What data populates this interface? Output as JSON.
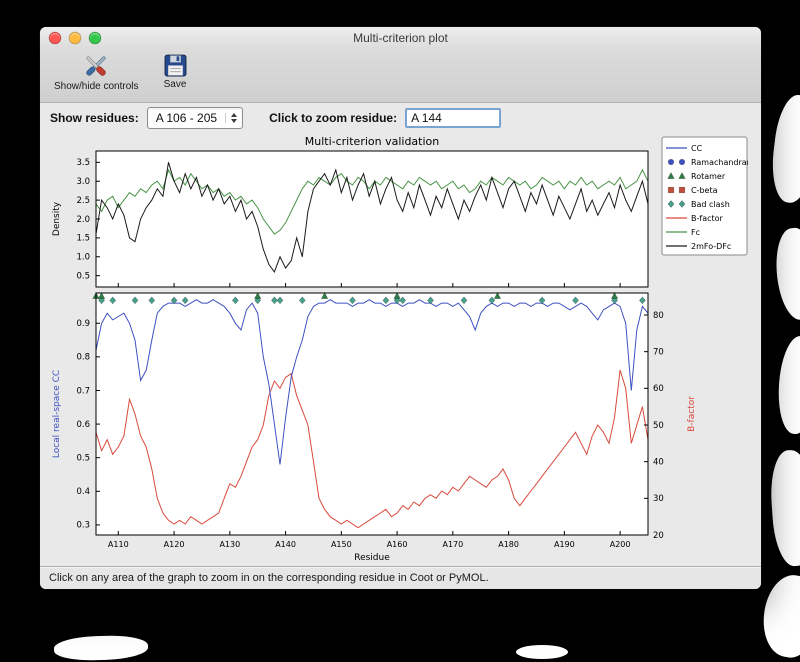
{
  "window": {
    "title": "Multi-criterion plot",
    "toolbar": {
      "show_hide_label": "Show/hide controls",
      "save_label": "Save"
    },
    "controls": {
      "show_residues_label": "Show residues:",
      "residues_range_value": "A 106 - 205",
      "zoom_residue_label": "Click to zoom residue:",
      "zoom_residue_value": "A 144"
    },
    "status": "Click on any area of the graph to zoom in on the corresponding residue in Coot or PyMOL."
  },
  "chart_data": {
    "type": "line",
    "title": "Multi-criterion validation",
    "xlabel": "Residue",
    "x_range": [
      106,
      205
    ],
    "x_ticks": [
      110,
      120,
      130,
      140,
      150,
      160,
      170,
      180,
      190,
      200
    ],
    "x_tick_labels": [
      "A110",
      "A120",
      "A130",
      "A140",
      "A150",
      "A160",
      "A170",
      "A180",
      "A190",
      "A200"
    ],
    "top_plot": {
      "ylabel": "Density",
      "ylim": [
        0.2,
        3.8
      ],
      "yticks": [
        0.5,
        1.0,
        1.5,
        2.0,
        2.5,
        3.0,
        3.5
      ],
      "series": [
        {
          "name": "Fc",
          "color": "#4a9447",
          "values": [
            2.4,
            2.2,
            2.5,
            2.6,
            2.3,
            2.5,
            2.7,
            2.6,
            2.8,
            2.7,
            2.9,
            3.0,
            2.8,
            3.3,
            3.0,
            3.1,
            2.9,
            3.2,
            3.0,
            2.8,
            2.9,
            2.7,
            2.8,
            2.6,
            2.7,
            2.5,
            2.6,
            2.4,
            2.5,
            2.3,
            2.0,
            1.8,
            1.6,
            1.7,
            1.9,
            2.2,
            2.5,
            2.8,
            3.0,
            2.9,
            3.1,
            3.0,
            2.9,
            3.1,
            3.2,
            3.0,
            2.9,
            3.1,
            3.0,
            2.8,
            3.0,
            2.9,
            3.1,
            3.0,
            2.9,
            2.8,
            3.0,
            2.9,
            3.1,
            3.0,
            2.9,
            3.0,
            2.8,
            2.9,
            3.0,
            2.8,
            2.9,
            2.7,
            2.8,
            3.0,
            2.9,
            3.1,
            3.0,
            2.9,
            3.1,
            3.0,
            2.9,
            3.0,
            2.8,
            2.9,
            3.1,
            3.0,
            2.9,
            3.0,
            2.8,
            3.0,
            2.9,
            3.1,
            2.9,
            3.0,
            2.8,
            2.9,
            3.0,
            2.9,
            3.1,
            2.8,
            2.9,
            3.0,
            3.3,
            3.0
          ]
        },
        {
          "name": "2mFo-DFc",
          "color": "#1a1a1a",
          "values": [
            1.6,
            2.5,
            2.3,
            2.0,
            2.4,
            2.1,
            1.5,
            1.4,
            2.0,
            2.3,
            2.5,
            2.8,
            2.6,
            3.5,
            3.0,
            2.7,
            3.2,
            2.8,
            3.1,
            2.6,
            2.9,
            2.5,
            2.8,
            2.4,
            2.6,
            2.2,
            2.5,
            2.0,
            2.2,
            1.8,
            1.2,
            0.8,
            0.6,
            1.0,
            0.7,
            0.9,
            1.5,
            1.0,
            2.2,
            2.8,
            3.0,
            3.2,
            2.9,
            3.3,
            2.7,
            3.1,
            2.5,
            2.9,
            3.2,
            2.6,
            3.0,
            2.4,
            2.8,
            3.1,
            2.5,
            2.2,
            2.7,
            2.3,
            2.9,
            2.5,
            2.1,
            2.6,
            2.3,
            2.8,
            2.4,
            2.0,
            2.5,
            2.2,
            2.6,
            2.9,
            2.5,
            3.1,
            2.7,
            2.3,
            2.8,
            3.0,
            2.6,
            2.2,
            2.7,
            2.4,
            2.9,
            2.5,
            2.1,
            2.6,
            2.3,
            2.0,
            2.4,
            2.8,
            2.2,
            2.5,
            2.1,
            2.4,
            2.7,
            2.3,
            2.9,
            2.5,
            2.2,
            2.6,
            3.0,
            2.4
          ]
        }
      ]
    },
    "bottom_plot": {
      "left_ylabel": "Local real-space CC",
      "left_color": "#3f51c1",
      "left_ylim": [
        0.27,
        0.99
      ],
      "left_yticks": [
        0.3,
        0.4,
        0.5,
        0.6,
        0.7,
        0.8,
        0.9
      ],
      "right_ylabel": "B-factor",
      "right_color": "#d9493c",
      "right_ylim": [
        20,
        86
      ],
      "right_yticks": [
        20,
        30,
        40,
        50,
        60,
        70,
        80
      ],
      "cc_values": [
        0.82,
        0.9,
        0.93,
        0.91,
        0.92,
        0.93,
        0.9,
        0.85,
        0.73,
        0.76,
        0.85,
        0.93,
        0.95,
        0.96,
        0.96,
        0.96,
        0.95,
        0.96,
        0.97,
        0.96,
        0.96,
        0.97,
        0.96,
        0.95,
        0.93,
        0.9,
        0.88,
        0.94,
        0.96,
        0.93,
        0.8,
        0.72,
        0.6,
        0.48,
        0.62,
        0.74,
        0.8,
        0.85,
        0.92,
        0.95,
        0.96,
        0.96,
        0.97,
        0.96,
        0.96,
        0.96,
        0.95,
        0.96,
        0.96,
        0.97,
        0.96,
        0.96,
        0.95,
        0.96,
        0.96,
        0.95,
        0.96,
        0.96,
        0.97,
        0.96,
        0.96,
        0.95,
        0.96,
        0.96,
        0.95,
        0.96,
        0.94,
        0.92,
        0.88,
        0.93,
        0.95,
        0.96,
        0.95,
        0.96,
        0.96,
        0.95,
        0.96,
        0.96,
        0.95,
        0.96,
        0.96,
        0.95,
        0.96,
        0.96,
        0.95,
        0.94,
        0.95,
        0.96,
        0.95,
        0.93,
        0.91,
        0.94,
        0.95,
        0.96,
        0.95,
        0.9,
        0.7,
        0.88,
        0.95,
        0.93
      ],
      "bfactor_values": [
        48,
        43,
        46,
        42,
        44,
        47,
        57,
        53,
        47,
        44,
        38,
        30,
        26,
        24,
        23,
        24,
        23,
        25,
        24,
        23,
        24,
        25,
        26,
        30,
        34,
        33,
        36,
        40,
        44,
        46,
        50,
        58,
        62,
        60,
        63,
        64,
        58,
        54,
        50,
        40,
        30,
        27,
        25,
        24,
        23,
        24,
        23,
        22,
        23,
        24,
        25,
        26,
        27,
        25,
        26,
        28,
        27,
        29,
        28,
        30,
        31,
        30,
        32,
        31,
        33,
        32,
        34,
        36,
        35,
        34,
        33,
        35,
        36,
        38,
        35,
        30,
        28,
        30,
        32,
        34,
        36,
        38,
        40,
        42,
        44,
        46,
        48,
        45,
        42,
        47,
        50,
        48,
        45,
        52,
        65,
        60,
        45,
        50,
        55,
        46
      ],
      "markers": {
        "ramachandran": {
          "shape": "circle",
          "color": "#3f51c1",
          "residues": []
        },
        "rotamer": {
          "shape": "triangle",
          "color": "#2f7d46",
          "residues": [
            106,
            107,
            135,
            147,
            160,
            178,
            199
          ]
        },
        "c_beta": {
          "shape": "square",
          "color": "#c14f3c",
          "residues": []
        },
        "bad_clash": {
          "shape": "diamond",
          "color": "#45a18c",
          "residues": [
            107,
            109,
            113,
            116,
            120,
            122,
            131,
            135,
            138,
            139,
            143,
            152,
            158,
            160,
            161,
            166,
            172,
            177,
            186,
            192,
            199,
            204
          ]
        }
      }
    },
    "legend": [
      {
        "label": "CC",
        "type": "line",
        "color": "#3f51c1"
      },
      {
        "label": "Ramachandran",
        "type": "circle",
        "color": "#3f51c1"
      },
      {
        "label": "Rotamer",
        "type": "triangle",
        "color": "#2f7d46"
      },
      {
        "label": "C-beta",
        "type": "square",
        "color": "#c14f3c"
      },
      {
        "label": "Bad clash",
        "type": "diamond",
        "color": "#45a18c"
      },
      {
        "label": "B-factor",
        "type": "line",
        "color": "#d9493c"
      },
      {
        "label": "Fc",
        "type": "line",
        "color": "#4a9447"
      },
      {
        "label": "2mFo-DFc",
        "type": "line",
        "color": "#1a1a1a"
      }
    ]
  }
}
